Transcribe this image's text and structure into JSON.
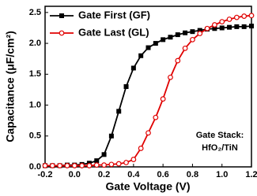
{
  "chart_data": {
    "type": "line",
    "xlabel": "Gate Voltage (V)",
    "ylabel": "Capacitance (μF/cm²)",
    "annotations": [
      "Gate Stack:",
      "HfO₂/TiN"
    ],
    "x": [
      -0.2,
      -0.15,
      -0.1,
      -0.05,
      0,
      0.05,
      0.1,
      0.15,
      0.2,
      0.25,
      0.3,
      0.35,
      0.4,
      0.45,
      0.5,
      0.55,
      0.6,
      0.65,
      0.7,
      0.75,
      0.8,
      0.85,
      0.9,
      0.95,
      1.0,
      1.05,
      1.1,
      1.15,
      1.2
    ],
    "series": [
      {
        "name": "Gate First (GF)",
        "color": "#000000",
        "marker": "square",
        "values": [
          0.02,
          0.02,
          0.02,
          0.03,
          0.03,
          0.04,
          0.06,
          0.1,
          0.2,
          0.5,
          0.9,
          1.3,
          1.6,
          1.8,
          1.93,
          2.0,
          2.06,
          2.1,
          2.14,
          2.17,
          2.19,
          2.21,
          2.23,
          2.24,
          2.25,
          2.26,
          2.27,
          2.27,
          2.28
        ]
      },
      {
        "name": "Gate Last (GL)",
        "color": "#e00000",
        "marker": "circle",
        "values": [
          0.02,
          0.02,
          0.02,
          0.02,
          0.02,
          0.02,
          0.02,
          0.03,
          0.03,
          0.04,
          0.05,
          0.07,
          0.12,
          0.3,
          0.55,
          0.8,
          1.1,
          1.45,
          1.72,
          1.92,
          2.06,
          2.16,
          2.24,
          2.3,
          2.35,
          2.39,
          2.42,
          2.44,
          2.45
        ]
      }
    ],
    "xlim": [
      -0.2,
      1.2
    ],
    "xticks": [
      -0.2,
      {
        "value": 0,
        "label": "0.0"
      },
      0.2,
      0.4,
      0.6,
      0.8,
      {
        "value": 1,
        "label": "1.0"
      },
      1.2
    ],
    "ylim": [
      0,
      2.6
    ],
    "yticks": [
      {
        "value": 0,
        "label": "0.0"
      },
      0.5,
      {
        "value": 1,
        "label": "1.0"
      },
      1.5,
      {
        "value": 2,
        "label": "2.0"
      },
      2.5
    ],
    "legend": "upper left"
  }
}
